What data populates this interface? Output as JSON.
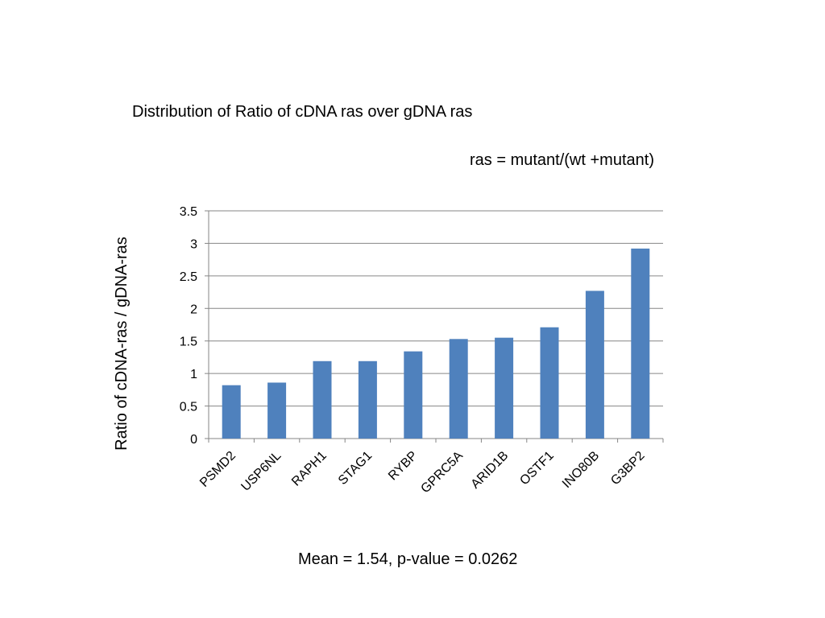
{
  "slide": {
    "title": "Distribution of Ratio of cDNA ras over gDNA ras",
    "subtitle": "ras = mutant/(wt +mutant)",
    "footnote": "Mean = 1.54, p-value = 0.0262"
  },
  "chart_data": {
    "type": "bar",
    "title": "",
    "xlabel": "",
    "ylabel": "Ratio of cDNA-ras / gDNA-ras",
    "categories": [
      "PSMD2",
      "USP6NL",
      "RAPH1",
      "STAG1",
      "RYBP",
      "GPRC5A",
      "ARID1B",
      "OSTF1",
      "INO80B",
      "G3BP2"
    ],
    "values": [
      0.82,
      0.86,
      1.19,
      1.19,
      1.34,
      1.53,
      1.55,
      1.71,
      2.27,
      2.92
    ],
    "ylim": [
      0,
      3.5
    ],
    "yticks": [
      "0",
      "0.5",
      "1",
      "1.5",
      "2",
      "2.5",
      "3",
      "3.5"
    ],
    "grid": true,
    "legend": "none",
    "bar_color": "#4F81BD"
  }
}
